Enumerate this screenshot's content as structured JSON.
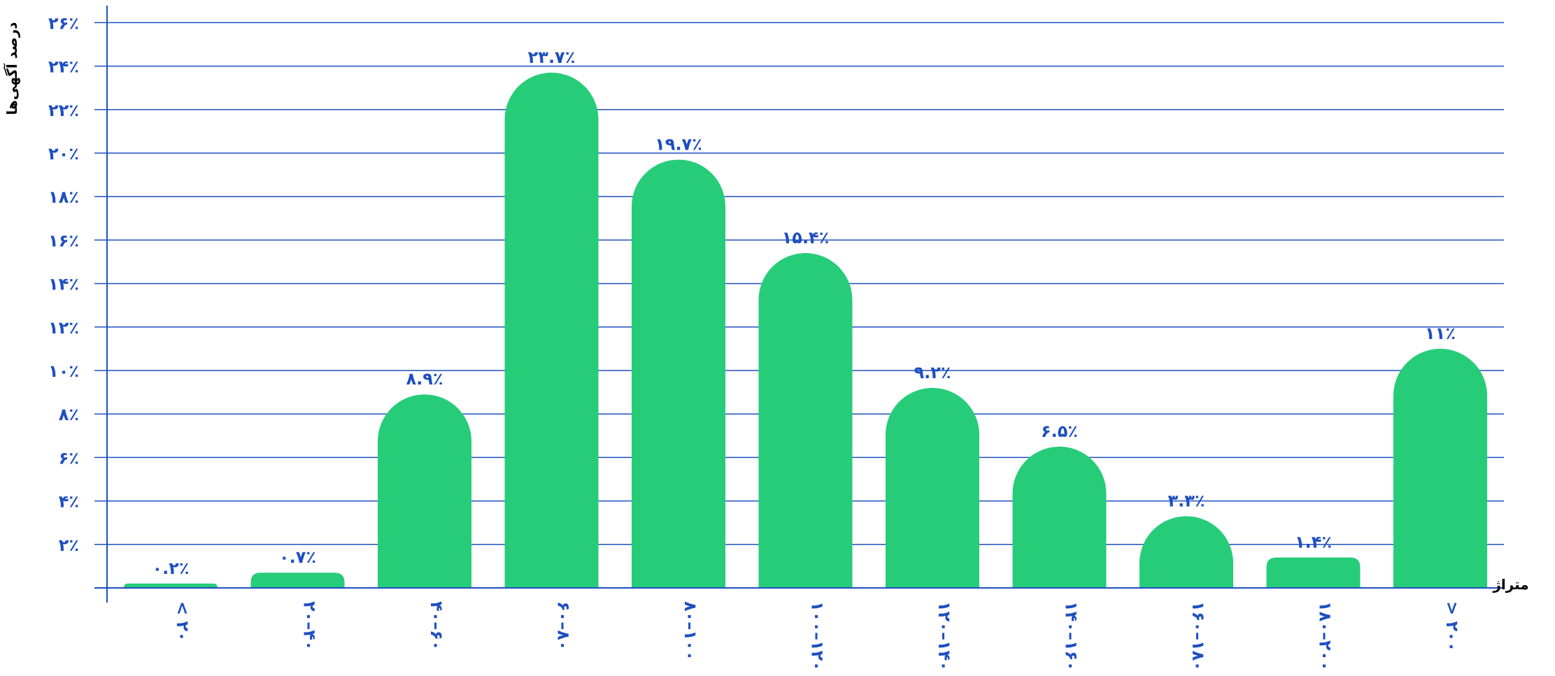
{
  "chart_data": {
    "type": "bar",
    "categories": [
      "< ۲۰",
      "۲۰–۴۰",
      "۴۰–۶۰",
      "۶۰–۸۰",
      "۸۰–۱۰۰",
      "۱۰۰–۱۲۰",
      "۱۲۰–۱۴۰",
      "۱۴۰–۱۶۰",
      "۱۶۰–۱۸۰",
      "۱۸۰–۲۰۰",
      "> ۲۰۰"
    ],
    "values": [
      0.2,
      0.7,
      8.9,
      23.7,
      19.7,
      15.4,
      9.2,
      6.5,
      3.3,
      1.4,
      11
    ],
    "data_labels": [
      "۰.۲٪",
      "۰.۷٪",
      "۸.۹٪",
      "۲۳.۷٪",
      "۱۹.۷٪",
      "۱۵.۴٪",
      "۹.۲٪",
      "۶.۵٪",
      "۳.۳٪",
      "۱.۴٪",
      "۱۱٪"
    ],
    "y_ticks": [
      2,
      4,
      6,
      8,
      10,
      12,
      14,
      16,
      18,
      20,
      22,
      24,
      26
    ],
    "y_tick_labels": [
      "۲٪",
      "۴٪",
      "۶٪",
      "۸٪",
      "۱۰٪",
      "۱۲٪",
      "۱۴٪",
      "۱۶٪",
      "۱۸٪",
      "۲۰٪",
      "۲۲٪",
      "۲۴٪",
      "۲۶٪"
    ],
    "ylim": [
      0,
      26
    ],
    "xlabel": "متراژ",
    "ylabel": "درصد آگهی‌ها",
    "grid": true,
    "colors": {
      "bar": "#26cc78",
      "axis": "#1e4fc0",
      "text": "#1e4fc0"
    }
  }
}
